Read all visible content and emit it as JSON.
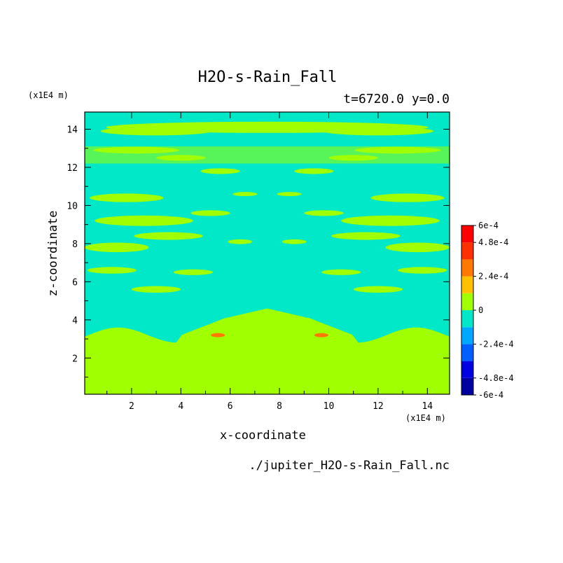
{
  "chart_data": {
    "type": "heatmap",
    "title": "H2O-s-Rain_Fall",
    "subtitle": "t=6720.0 y=0.0",
    "xlabel": "x-coordinate",
    "ylabel": "z-coordinate",
    "x_unit": "(x1E4 m)",
    "y_unit": "(x1E4 m)",
    "xlim": [
      0.1,
      14.9
    ],
    "ylim": [
      0.1,
      14.9
    ],
    "x_ticks": [
      2,
      4,
      6,
      8,
      10,
      12,
      14
    ],
    "y_ticks": [
      2,
      4,
      6,
      8,
      10,
      12,
      14
    ],
    "colorbar": {
      "range": [
        -0.0006,
        0.0006
      ],
      "levels": 10,
      "colors": [
        "#0000a0",
        "#0000e0",
        "#0060ff",
        "#00a8ff",
        "#00e8c8",
        "#a0ff00",
        "#ffc000",
        "#ff7800",
        "#ff3000",
        "#ff0000"
      ],
      "labels": [
        {
          "value": 0.0006,
          "text": "6e-4"
        },
        {
          "value": 0.00048,
          "text": "4.8e-4"
        },
        {
          "value": 0.00024,
          "text": "2.4e-4"
        },
        {
          "value": 0,
          "text": "0"
        },
        {
          "value": -0.00024,
          "text": "-2.4e-4"
        },
        {
          "value": -0.00048,
          "text": "-4.8e-4"
        },
        {
          "value": -0.0006,
          "text": "-6e-4"
        }
      ]
    },
    "field_colors": {
      "positive": "#a0ff00",
      "negative": "#00e8c8",
      "hot": "#ff7800"
    },
    "footer": "./jupiter_H2O-s-Rain_Fall.nc"
  }
}
